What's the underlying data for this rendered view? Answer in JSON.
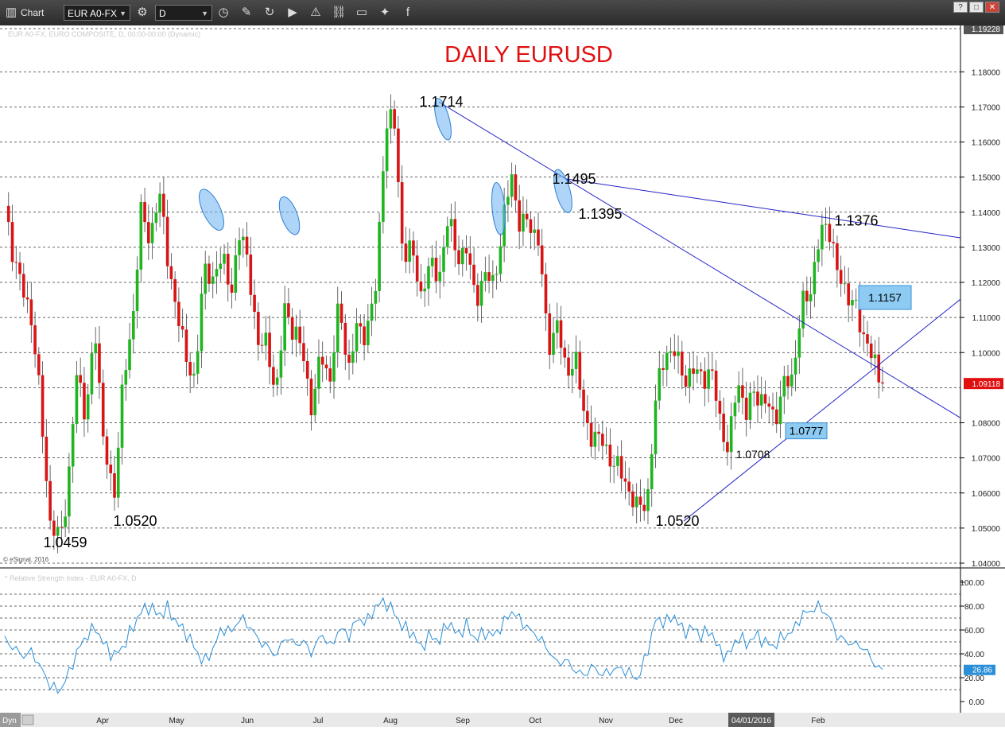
{
  "toolbar": {
    "app_title": "Chart",
    "symbol": "EUR A0-FX",
    "interval": "D",
    "icons": [
      "chart-window-icon",
      "settings-gear-icon",
      "clock-icon",
      "pencil-icon",
      "refresh-icon",
      "play-icon",
      "alert-icon",
      "link-icon",
      "comment-icon",
      "twitter-icon",
      "facebook-icon"
    ]
  },
  "window_buttons": {
    "restore": "?",
    "maximize": "□",
    "close": "✕"
  },
  "price_panel": {
    "header": "EUR A0-FX, EURO COMPOSITE, D, 00:00-00:00 (Dynamic)",
    "copyright": "© eSignal, 2016",
    "y_ticks": [
      "1.18000",
      "1.17000",
      "1.16000",
      "1.15000",
      "1.14000",
      "1.13000",
      "1.12000",
      "1.11000",
      "1.10000",
      "1.08000",
      "1.07000",
      "1.06000",
      "1.05000",
      "1.04000"
    ],
    "top_value": "1.19228",
    "last_price": "1.09118"
  },
  "rsi_panel": {
    "header": "* Relative Strength Index - EUR A0-FX, D",
    "y_ticks": [
      "100.00",
      "80.00",
      "60.00",
      "40.00",
      "20.00",
      "0.00"
    ],
    "last_value": "26.86",
    "dyn_label": "Dyn"
  },
  "x_axis": {
    "months": [
      "Apr",
      "May",
      "Jun",
      "Jul",
      "Aug",
      "Sep",
      "Oct",
      "Nov",
      "Dec",
      "Feb"
    ],
    "highlight_date": "04/01/2016"
  },
  "colors": {
    "up": "#1fb51f",
    "down": "#d91414",
    "trendline": "#2323c8",
    "rsi": "#2a8fd8",
    "title": "#e01010"
  },
  "chart_data": {
    "type": "candlestick",
    "title": "DAILY EURUSD",
    "ylim": [
      1.04,
      1.1923
    ],
    "rsi_ylim": [
      0,
      100
    ],
    "annotations": [
      {
        "text": "1.1714",
        "value": 1.1714
      },
      {
        "text": "1.1495",
        "value": 1.1495
      },
      {
        "text": "1.1395",
        "value": 1.1395
      },
      {
        "text": "1.1376",
        "value": 1.1376
      },
      {
        "text": "1.1157",
        "value": 1.1157,
        "boxed": true
      },
      {
        "text": "1.0777",
        "value": 1.0777,
        "boxed": true
      },
      {
        "text": "1.0708",
        "value": 1.0708
      },
      {
        "text": "1.0520",
        "value": 1.052
      },
      {
        "text": "1.0520",
        "value": 1.052
      },
      {
        "text": "1.0459",
        "value": 1.0459
      }
    ],
    "swing_points": [
      1.14,
      1.128,
      1.117,
      1.11,
      1.083,
      1.052,
      1.046,
      1.062,
      1.095,
      1.082,
      1.106,
      1.073,
      1.057,
      1.09,
      1.105,
      1.14,
      1.132,
      1.146,
      1.128,
      1.11,
      1.101,
      1.089,
      1.127,
      1.118,
      1.131,
      1.114,
      1.138,
      1.121,
      1.104,
      1.101,
      1.089,
      1.113,
      1.106,
      1.099,
      1.083,
      1.101,
      1.091,
      1.116,
      1.093,
      1.11,
      1.103,
      1.121,
      1.16,
      1.171,
      1.124,
      1.133,
      1.113,
      1.129,
      1.118,
      1.142,
      1.124,
      1.132,
      1.113,
      1.124,
      1.118,
      1.137,
      1.15,
      1.136,
      1.137,
      1.132,
      1.102,
      1.108,
      1.095,
      1.098,
      1.084,
      1.073,
      1.078,
      1.066,
      1.07,
      1.057,
      1.059,
      1.054,
      1.092,
      1.097,
      1.103,
      1.09,
      1.097,
      1.091,
      1.097,
      1.08,
      1.073,
      1.092,
      1.083,
      1.089,
      1.086,
      1.081,
      1.09,
      1.093,
      1.112,
      1.118,
      1.132,
      1.138,
      1.122,
      1.118,
      1.112,
      1.105,
      1.097,
      1.0912
    ],
    "rsi_points": [
      52,
      45,
      38,
      42,
      28,
      14,
      8,
      22,
      42,
      55,
      62,
      48,
      38,
      45,
      60,
      75,
      80,
      72,
      78,
      66,
      58,
      45,
      32,
      44,
      62,
      58,
      70,
      64,
      52,
      46,
      38,
      55,
      48,
      50,
      40,
      58,
      45,
      62,
      55,
      70,
      66,
      80,
      84,
      75,
      62,
      58,
      45,
      56,
      50,
      68,
      55,
      64,
      52,
      58,
      55,
      64,
      76,
      68,
      60,
      54,
      44,
      32,
      35,
      26,
      22,
      30,
      22,
      26,
      28,
      24,
      18,
      42,
      70,
      66,
      72,
      58,
      62,
      55,
      60,
      42,
      38,
      55,
      48,
      56,
      50,
      46,
      55,
      58,
      72,
      76,
      80,
      72,
      55,
      50,
      48,
      45,
      32,
      26.86
    ]
  }
}
